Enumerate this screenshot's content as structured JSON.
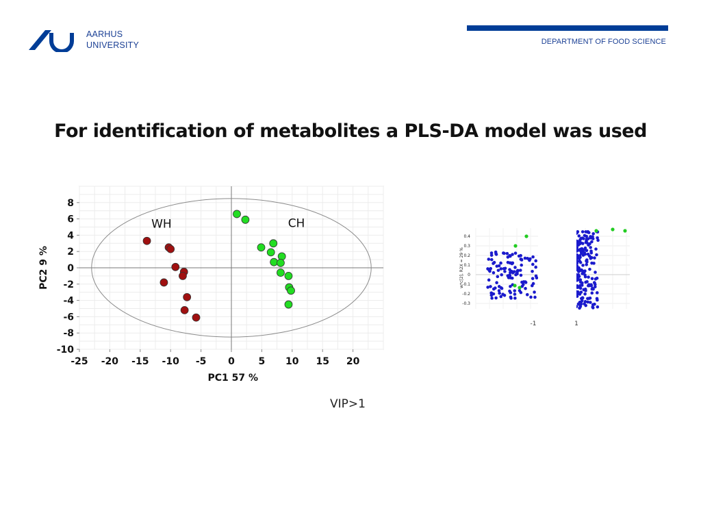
{
  "header": {
    "logo_line1": "AARHUS",
    "logo_line2": "UNIVERSITY",
    "department": "DEPARTMENT OF FOOD SCIENCE",
    "brand_color": "#003d97"
  },
  "title": "For identification of metabolites a PLS-DA model was used",
  "footnote": "VIP>1",
  "chart_data": [
    {
      "type": "scatter",
      "xlabel": "PC1 57 %",
      "ylabel": "PC2 9 %",
      "xlim": [
        -25,
        25
      ],
      "ylim": [
        -10,
        10
      ],
      "xticks": [
        -25,
        -20,
        -15,
        -10,
        -5,
        0,
        5,
        10,
        15,
        20
      ],
      "yticks": [
        8,
        6,
        4,
        2,
        0,
        -2,
        -4,
        -6,
        -8,
        -10
      ],
      "grid": true,
      "ellipse": {
        "center": [
          0,
          0
        ],
        "rx": 23,
        "ry": 8.5
      },
      "annotations": [
        {
          "text": "WH",
          "x": -11.5,
          "y": 5.4
        },
        {
          "text": "CH",
          "x": 10.7,
          "y": 5.5
        }
      ],
      "series": [
        {
          "color": "#a01010",
          "x": [
            -13.9,
            -10.3,
            -10.0,
            -9.2,
            -7.8,
            -8.0,
            -11.1,
            -7.3,
            -7.7,
            -5.8
          ],
          "y": [
            3.3,
            2.5,
            2.3,
            0.1,
            -0.5,
            -1.0,
            -1.8,
            -3.6,
            -5.2,
            -6.1
          ]
        },
        {
          "color": "#22dd22",
          "x": [
            0.9,
            2.3,
            6.9,
            4.9,
            6.5,
            8.3,
            7.0,
            8.1,
            8.1,
            9.4,
            9.5,
            9.8,
            9.4
          ],
          "y": [
            6.6,
            5.9,
            3.0,
            2.5,
            1.9,
            1.4,
            0.7,
            0.6,
            -0.6,
            -1.0,
            -2.4,
            -2.8,
            -4.5
          ]
        }
      ]
    },
    {
      "type": "scatter",
      "ylabel": "w*c[2], R2X = 29 %",
      "yticks": [
        "0.4",
        "0.3",
        "0.2",
        "0.1",
        "0",
        "-0.1",
        "-0.2",
        "-0.3"
      ],
      "xtick_labels": [
        "-1",
        "1"
      ],
      "grid": true,
      "colors": {
        "main": "#1a1acc",
        "highlight": "#22cc22"
      }
    }
  ]
}
